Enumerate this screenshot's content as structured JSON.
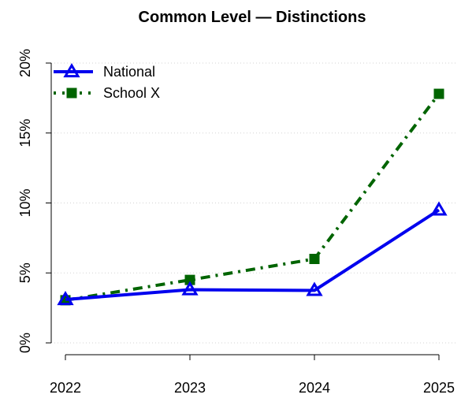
{
  "chart_data": {
    "type": "line",
    "title": "Common Level — Distinctions",
    "xlabel": "",
    "ylabel": "",
    "categories": [
      "2022",
      "2023",
      "2024",
      "2025"
    ],
    "ylim": [
      0,
      20
    ],
    "yticks": [
      0,
      5,
      10,
      15,
      20
    ],
    "ytick_labels": [
      "0%",
      "5%",
      "10%",
      "15%",
      "20%"
    ],
    "grid": true,
    "legend_position": "top-left",
    "series": [
      {
        "name": "National",
        "values": [
          3.1,
          3.8,
          3.75,
          9.5
        ],
        "color": "#0000ee",
        "line_style": "solid",
        "marker": "triangle"
      },
      {
        "name": "School X",
        "values": [
          3.05,
          4.5,
          6.0,
          17.8
        ],
        "color": "#006400",
        "line_style": "dash-dot",
        "marker": "square"
      }
    ]
  }
}
